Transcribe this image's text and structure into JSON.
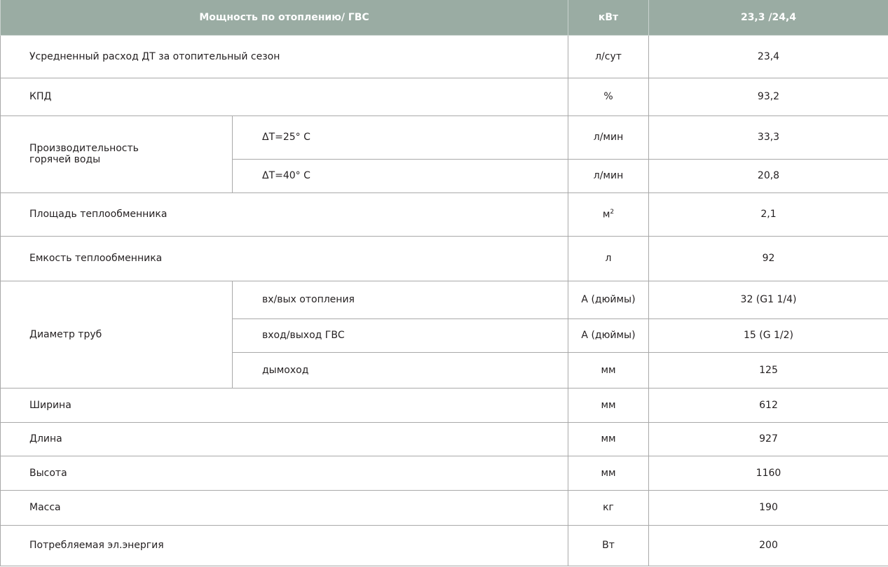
{
  "header": {
    "parameter": "Мощность по отоплению/ ГВС",
    "unit": "кВт",
    "value": "23,3  /24,4"
  },
  "rows": {
    "consumption": {
      "label": "Усредненный расход ДТ за отопительный сезон",
      "unit": "л/сут",
      "value": "23,4"
    },
    "efficiency": {
      "label": "КПД",
      "unit": "%",
      "value": "93,2"
    },
    "hot_water": {
      "label_line1": "Производительность",
      "label_line2": "горячей воды",
      "dt25": {
        "label": "ΔT=25° C",
        "unit": "л/мин",
        "value": "33,3"
      },
      "dt40": {
        "label": "ΔT=40° C",
        "unit": "л/мин",
        "value": "20,8"
      }
    },
    "hx_area": {
      "label": "Площадь теплообменника",
      "unit": "м",
      "unit_sup": "2",
      "value": "2,1"
    },
    "hx_volume": {
      "label": "Емкость теплообменника",
      "unit": "л",
      "value": "92"
    },
    "pipes": {
      "label": "Диаметр труб",
      "heating": {
        "label": "вх/вых отопления",
        "unit": "А (дюймы)",
        "value": "32 (G1 1/4)"
      },
      "dhw": {
        "label": "вход/выход ГВС",
        "unit": "А (дюймы)",
        "value": "15 (G 1/2)"
      },
      "flue": {
        "label": "дымоход",
        "unit": "мм",
        "value": "125"
      }
    },
    "width": {
      "label": "Ширина",
      "unit": "мм",
      "value": "612"
    },
    "length": {
      "label": "Длина",
      "unit": "мм",
      "value": "927"
    },
    "height": {
      "label": "Высота",
      "unit": "мм",
      "value": "1160"
    },
    "mass": {
      "label": "Масса",
      "unit": "кг",
      "value": "190"
    },
    "power": {
      "label": "Потребляемая эл.энергия",
      "unit": "Вт",
      "value": "200"
    }
  },
  "colors": {
    "header_bg": "#9aaca3",
    "border": "#a9a9a9"
  }
}
